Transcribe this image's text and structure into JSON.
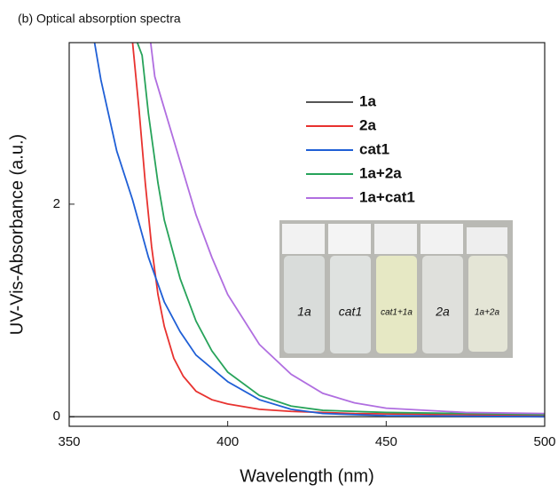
{
  "chart_data": {
    "type": "line",
    "title": "(b) Optical absorption spectra",
    "x_label": "Wavelength (nm)",
    "y_label": "UV-Vis-Absorbance (a.u.)",
    "xlim": [
      350,
      500
    ],
    "xticks": [
      350,
      400,
      450,
      500
    ],
    "ylim": [
      -0.09,
      3.52
    ],
    "yticks": [
      0,
      2
    ],
    "legend": "upper right",
    "photo_labels": [
      "1a",
      "cat1",
      "cat1+1a",
      "2a",
      "1a+2a"
    ],
    "series": [
      {
        "name": "1a",
        "color": "#555555",
        "x": [
          350,
          375,
          400,
          425,
          450,
          475,
          500
        ],
        "values": [
          0,
          0,
          0,
          0,
          0,
          0,
          0
        ]
      },
      {
        "name": "2a",
        "color": "#e8322f",
        "x": [
          370,
          372,
          374,
          376,
          378,
          380,
          383,
          386,
          390,
          395,
          400,
          410,
          420,
          440,
          470,
          500
        ],
        "values": [
          3.52,
          2.9,
          2.2,
          1.6,
          1.15,
          0.85,
          0.55,
          0.38,
          0.24,
          0.16,
          0.12,
          0.07,
          0.05,
          0.03,
          0.02,
          0.01
        ]
      },
      {
        "name": "cat1",
        "color": "#1f5fd6",
        "x": [
          358,
          360,
          365,
          370,
          375,
          380,
          385,
          390,
          400,
          410,
          420,
          430,
          450,
          500
        ],
        "values": [
          3.52,
          3.17,
          2.5,
          2.04,
          1.5,
          1.08,
          0.8,
          0.58,
          0.33,
          0.16,
          0.07,
          0.03,
          0.01,
          0
        ]
      },
      {
        "name": "1a+2a",
        "color": "#27a35a",
        "x": [
          371.5,
          373,
          375,
          378,
          380,
          385,
          390,
          395,
          400,
          410,
          420,
          430,
          450,
          475,
          500
        ],
        "values": [
          3.52,
          3.4,
          2.85,
          2.2,
          1.85,
          1.3,
          0.9,
          0.62,
          0.42,
          0.2,
          0.1,
          0.06,
          0.04,
          0.03,
          0.02
        ]
      },
      {
        "name": "1a+cat1",
        "color": "#b06ee0",
        "x": [
          375.7,
          377,
          380,
          385,
          390,
          395,
          400,
          410,
          420,
          430,
          440,
          450,
          475,
          500
        ],
        "values": [
          3.52,
          3.2,
          2.9,
          2.4,
          1.9,
          1.5,
          1.15,
          0.68,
          0.4,
          0.22,
          0.13,
          0.08,
          0.04,
          0.03
        ]
      }
    ]
  }
}
